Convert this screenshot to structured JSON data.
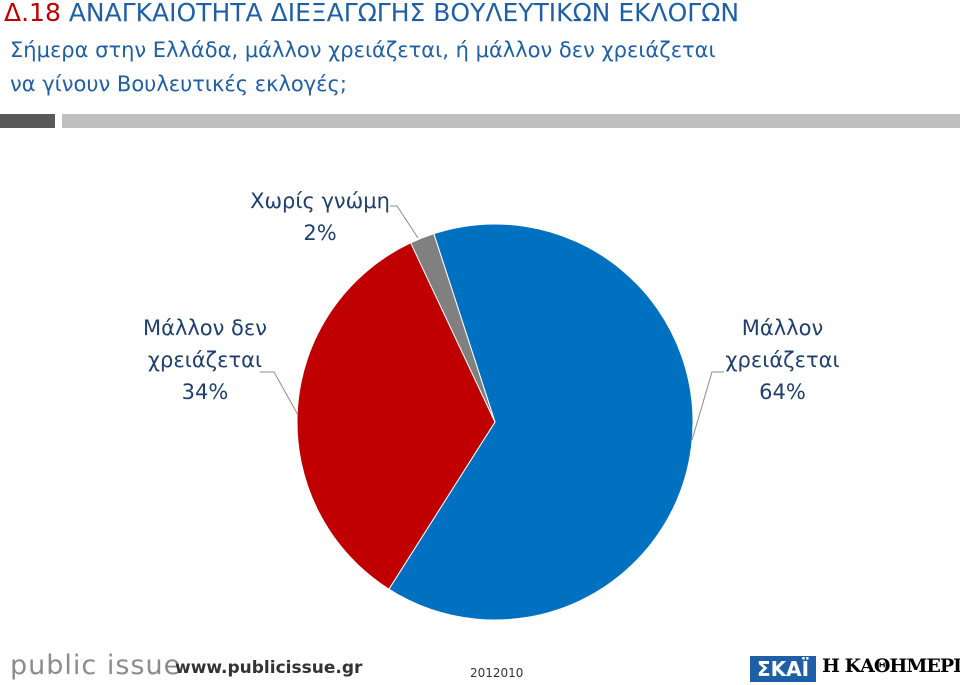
{
  "chart_data": {
    "type": "pie",
    "figure_label": "Δ.18",
    "title": "ΑΝΑΓΚΑΙΟΤΗΤΑ ΔΙΕΞΑΓΩΓΗΣ ΒΟΥΛΕΥΤΙΚΩΝ ΕΚΛΟΓΩΝ",
    "subtitle": [
      "Σήμερα στην Ελλάδα, μάλλον χρειάζεται, ή μάλλον δεν χρειάζεται",
      "να γίνουν Βουλευτικές εκλογές;"
    ],
    "categories": [
      "Μάλλον χρειάζεται",
      "Μάλλον δεν χρειάζεται",
      "Χωρίς γνώμη"
    ],
    "values": [
      64,
      34,
      2
    ],
    "value_labels": [
      "64%",
      "34%",
      "2%"
    ],
    "colors": [
      "#0070c0",
      "#c00000",
      "#808080"
    ]
  },
  "footer": {
    "logo": "public issue",
    "url": "www.publicissue.gr",
    "code": "2012010",
    "partner_1": "ΣΚΑΪ",
    "partner_2": "Η ΚΑΘΗΜΕΡΙΝΗ"
  }
}
